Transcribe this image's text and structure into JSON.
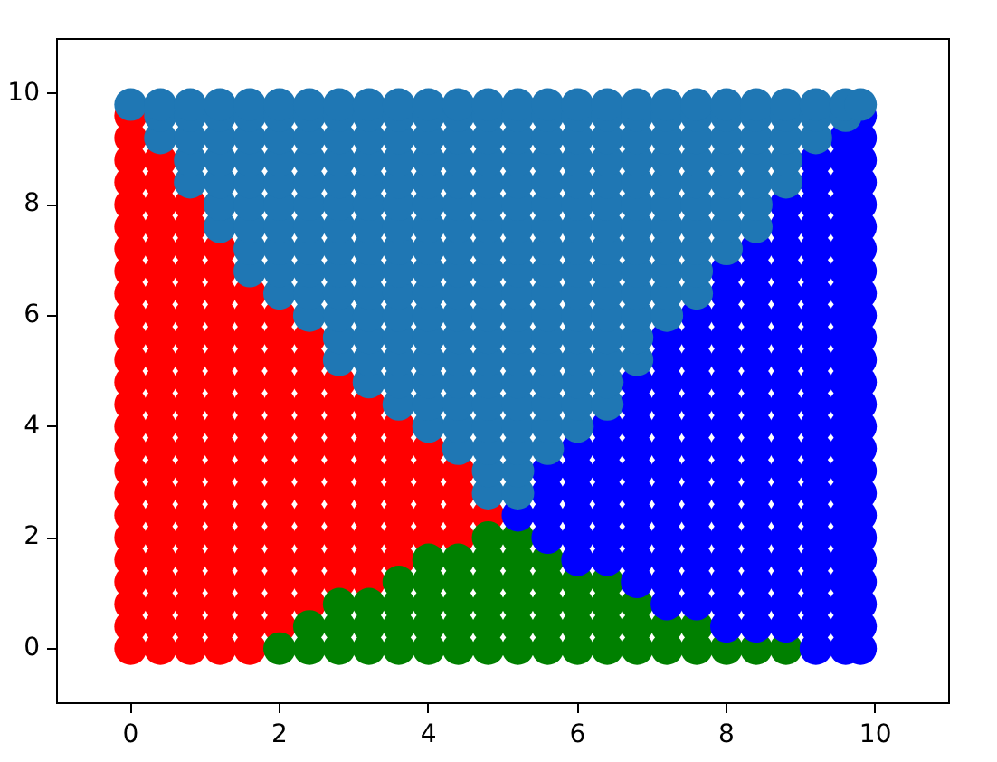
{
  "chart_data": {
    "type": "scatter",
    "xlim": [
      -1,
      11
    ],
    "ylim": [
      -1,
      11
    ],
    "xticks": [
      0,
      2,
      4,
      6,
      8,
      10
    ],
    "yticks": [
      0,
      2,
      4,
      6,
      8,
      10
    ],
    "marker": "circle",
    "series": [
      {
        "color": "#ff0000",
        "x": [
          0,
          0,
          0,
          0,
          0,
          0,
          0,
          0,
          0,
          0,
          0,
          0,
          0,
          0,
          0,
          0,
          0,
          0,
          0,
          0,
          0,
          0,
          0,
          0,
          0,
          0.4,
          0.4,
          0.4,
          0.4,
          0.4,
          0.4,
          0.4,
          0.4,
          0.4,
          0.4,
          0.4,
          0.4,
          0.4,
          0.4,
          0.4,
          0.4,
          0.4,
          0.4,
          0.4,
          0.4,
          0.4,
          0.4,
          0.4,
          0.8,
          0.8,
          0.8,
          0.8,
          0.8,
          0.8,
          0.8,
          0.8,
          0.8,
          0.8,
          0.8,
          0.8,
          0.8,
          0.8,
          0.8,
          0.8,
          0.8,
          0.8,
          0.8,
          0.8,
          0.8,
          1.2,
          1.2,
          1.2,
          1.2,
          1.2,
          1.2,
          1.2,
          1.2,
          1.2,
          1.2,
          1.2,
          1.2,
          1.2,
          1.2,
          1.2,
          1.2,
          1.2,
          1.2,
          1.2,
          1.6,
          1.6,
          1.6,
          1.6,
          1.6,
          1.6,
          1.6,
          1.6,
          1.6,
          1.6,
          1.6,
          1.6,
          1.6,
          1.6,
          1.6,
          1.6,
          1.6,
          2,
          2,
          2,
          2,
          2,
          2,
          2,
          2,
          2,
          2,
          2,
          2,
          2,
          2,
          2,
          2.4,
          2.4,
          2.4,
          2.4,
          2.4,
          2.4,
          2.4,
          2.4,
          2.4,
          2.4,
          2.4,
          2.4,
          2.4,
          2.8,
          2.8,
          2.8,
          2.8,
          2.8,
          2.8,
          2.8,
          2.8,
          2.8,
          2.8,
          3.2,
          3.2,
          3.2,
          3.2,
          3.2,
          3.2,
          3.2,
          3.2,
          3.2,
          3.6,
          3.6,
          3.6,
          3.6,
          3.6,
          3.6,
          3.6,
          4,
          4,
          4,
          4,
          4,
          4.4,
          4.4,
          4.4,
          4.4,
          4.8
        ],
        "values": [
          0,
          0.4,
          0.8,
          1.2,
          1.6,
          2,
          2.4,
          2.8,
          3.2,
          3.6,
          4,
          4.4,
          4.8,
          5.2,
          5.6,
          6,
          6.4,
          6.8,
          7.2,
          7.6,
          8,
          8.4,
          8.8,
          9.2,
          9.6,
          0,
          0.4,
          0.8,
          1.2,
          1.6,
          2,
          2.4,
          2.8,
          3.2,
          3.6,
          4,
          4.4,
          4.8,
          5.2,
          5.6,
          6,
          6.4,
          6.8,
          7.2,
          7.6,
          8,
          8.4,
          8.8,
          0,
          0.4,
          0.8,
          1.2,
          1.6,
          2,
          2.4,
          2.8,
          3.2,
          3.6,
          4,
          4.4,
          4.8,
          5.2,
          5.6,
          6,
          6.4,
          6.8,
          7.2,
          7.6,
          8,
          0,
          0.4,
          0.8,
          1.2,
          1.6,
          2,
          2.4,
          2.8,
          3.2,
          3.6,
          4,
          4.4,
          4.8,
          5.2,
          5.6,
          6,
          6.4,
          6.8,
          7.2,
          0,
          0.4,
          0.8,
          1.2,
          1.6,
          2,
          2.4,
          2.8,
          3.2,
          3.6,
          4,
          4.4,
          4.8,
          5.2,
          5.6,
          6,
          6.4,
          0.4,
          0.8,
          1.2,
          1.6,
          2,
          2.4,
          2.8,
          3.2,
          3.6,
          4,
          4.4,
          4.8,
          5.2,
          5.6,
          6,
          0.8,
          1.2,
          1.6,
          2,
          2.4,
          2.8,
          3.2,
          3.6,
          4,
          4.4,
          4.8,
          5.2,
          5.6,
          1.2,
          1.6,
          2,
          2.4,
          2.8,
          3.2,
          3.6,
          4,
          4.4,
          4.8,
          1.2,
          1.6,
          2,
          2.4,
          2.8,
          3.2,
          3.6,
          4,
          4.4,
          1.6,
          2,
          2.4,
          2.8,
          3.2,
          3.6,
          4,
          2,
          2.4,
          2.8,
          3.2,
          3.6,
          2,
          2.4,
          2.8,
          3.2,
          2.4
        ]
      },
      {
        "color": "#008000",
        "x": [
          2,
          2.4,
          2.4,
          2.8,
          2.8,
          2.8,
          3.2,
          3.2,
          3.2,
          3.6,
          3.6,
          3.6,
          3.6,
          4,
          4,
          4,
          4,
          4,
          4.4,
          4.4,
          4.4,
          4.4,
          4.4,
          4.8,
          4.8,
          4.8,
          4.8,
          4.8,
          4.8,
          5.2,
          5.2,
          5.2,
          5.2,
          5.2,
          5.2,
          5.6,
          5.6,
          5.6,
          5.6,
          5.6,
          6,
          6,
          6,
          6,
          6.4,
          6.4,
          6.4,
          6.4,
          6.8,
          6.8,
          6.8,
          7.2,
          7.2,
          7.6,
          7.6,
          8,
          8.4,
          8.8
        ],
        "values": [
          0,
          0,
          0.4,
          0,
          0.4,
          0.8,
          0,
          0.4,
          0.8,
          0,
          0.4,
          0.8,
          1.2,
          0,
          0.4,
          0.8,
          1.2,
          1.6,
          0,
          0.4,
          0.8,
          1.2,
          1.6,
          0,
          0.4,
          0.8,
          1.2,
          1.6,
          2,
          0,
          0.4,
          0.8,
          1.2,
          1.6,
          2,
          0,
          0.4,
          0.8,
          1.2,
          1.6,
          0,
          0.4,
          0.8,
          1.2,
          0,
          0.4,
          0.8,
          1.2,
          0,
          0.4,
          0.8,
          0,
          0.4,
          0,
          0.4,
          0,
          0,
          0
        ]
      },
      {
        "color": "#0000ff",
        "x": [
          5.2,
          5.6,
          5.6,
          5.6,
          5.6,
          6,
          6,
          6,
          6,
          6,
          6,
          6.4,
          6.4,
          6.4,
          6.4,
          6.4,
          6.4,
          6.4,
          6.8,
          6.8,
          6.8,
          6.8,
          6.8,
          6.8,
          6.8,
          6.8,
          6.8,
          6.8,
          7.2,
          7.2,
          7.2,
          7.2,
          7.2,
          7.2,
          7.2,
          7.2,
          7.2,
          7.2,
          7.2,
          7.2,
          7.2,
          7.6,
          7.6,
          7.6,
          7.6,
          7.6,
          7.6,
          7.6,
          7.6,
          7.6,
          7.6,
          7.6,
          7.6,
          7.6,
          7.6,
          8,
          8,
          8,
          8,
          8,
          8,
          8,
          8,
          8,
          8,
          8,
          8,
          8,
          8,
          8,
          8,
          8,
          8.4,
          8.4,
          8.4,
          8.4,
          8.4,
          8.4,
          8.4,
          8.4,
          8.4,
          8.4,
          8.4,
          8.4,
          8.4,
          8.4,
          8.4,
          8.4,
          8.4,
          8.4,
          8.8,
          8.8,
          8.8,
          8.8,
          8.8,
          8.8,
          8.8,
          8.8,
          8.8,
          8.8,
          8.8,
          8.8,
          8.8,
          8.8,
          8.8,
          8.8,
          8.8,
          8.8,
          8.8,
          8.8,
          9.2,
          9.2,
          9.2,
          9.2,
          9.2,
          9.2,
          9.2,
          9.2,
          9.2,
          9.2,
          9.2,
          9.2,
          9.2,
          9.2,
          9.2,
          9.2,
          9.2,
          9.2,
          9.2,
          9.2,
          9.2,
          9.2,
          9.2,
          9.6,
          9.6,
          9.6,
          9.6,
          9.6,
          9.6,
          9.6,
          9.6,
          9.6,
          9.6,
          9.6,
          9.6,
          9.6,
          9.6,
          9.6,
          9.6,
          9.6,
          9.6,
          9.6,
          9.6,
          9.6,
          9.6,
          9.6,
          9.6,
          9.8,
          9.8,
          9.8,
          9.8,
          9.8,
          9.8,
          9.8,
          9.8,
          9.8,
          9.8,
          9.8,
          9.8,
          9.8,
          9.8,
          9.8,
          9.8,
          9.8,
          9.8,
          9.8,
          9.8,
          9.8,
          9.8,
          9.8,
          9.8,
          9.8
        ],
        "values": [
          2.4,
          2,
          2.4,
          2.8,
          3.2,
          1.6,
          2,
          2.4,
          2.8,
          3.2,
          3.6,
          1.6,
          2,
          2.4,
          2.8,
          3.2,
          3.6,
          4,
          1.2,
          1.6,
          2,
          2.4,
          2.8,
          3.2,
          3.6,
          4,
          4.4,
          4.8,
          0.8,
          1.2,
          1.6,
          2,
          2.4,
          2.8,
          3.2,
          3.6,
          4,
          4.4,
          4.8,
          5.2,
          5.6,
          0.8,
          1.2,
          1.6,
          2,
          2.4,
          2.8,
          3.2,
          3.6,
          4,
          4.4,
          4.8,
          5.2,
          5.6,
          6,
          0.4,
          0.8,
          1.2,
          1.6,
          2,
          2.4,
          2.8,
          3.2,
          3.6,
          4,
          4.4,
          4.8,
          5.2,
          5.6,
          6,
          6.4,
          6.8,
          0.4,
          0.8,
          1.2,
          1.6,
          2,
          2.4,
          2.8,
          3.2,
          3.6,
          4,
          4.4,
          4.8,
          5.2,
          5.6,
          6,
          6.4,
          6.8,
          7.2,
          0.4,
          0.8,
          1.2,
          1.6,
          2,
          2.4,
          2.8,
          3.2,
          3.6,
          4,
          4.4,
          4.8,
          5.2,
          5.6,
          6,
          6.4,
          6.8,
          7.2,
          7.6,
          8,
          0,
          0.4,
          0.8,
          1.2,
          1.6,
          2,
          2.4,
          2.8,
          3.2,
          3.6,
          4,
          4.4,
          4.8,
          5.2,
          5.6,
          6,
          6.4,
          6.8,
          7.2,
          7.6,
          8,
          8.4,
          8.8,
          0,
          0.4,
          0.8,
          1.2,
          1.6,
          2,
          2.4,
          2.8,
          3.2,
          3.6,
          4,
          4.4,
          4.8,
          5.2,
          5.6,
          6,
          6.4,
          6.8,
          7.2,
          7.6,
          8,
          8.4,
          8.8,
          9.2,
          0,
          0.4,
          0.8,
          1.2,
          1.6,
          2,
          2.4,
          2.8,
          3.2,
          3.6,
          4,
          4.4,
          4.8,
          5.2,
          5.6,
          6,
          6.4,
          6.8,
          7.2,
          7.6,
          8,
          8.4,
          8.8,
          9.2,
          9.6
        ]
      },
      {
        "color": "#1f77b4",
        "x": [
          0,
          0.4,
          0.4,
          0.4,
          0.8,
          0.8,
          0.8,
          0.8,
          0.8,
          1.2,
          1.2,
          1.2,
          1.2,
          1.2,
          1.2,
          1.2,
          1.6,
          1.6,
          1.6,
          1.6,
          1.6,
          1.6,
          1.6,
          1.6,
          1.6,
          2,
          2,
          2,
          2,
          2,
          2,
          2,
          2,
          2,
          2,
          2.4,
          2.4,
          2.4,
          2.4,
          2.4,
          2.4,
          2.4,
          2.4,
          2.4,
          2.4,
          2.4,
          2.8,
          2.8,
          2.8,
          2.8,
          2.8,
          2.8,
          2.8,
          2.8,
          2.8,
          2.8,
          2.8,
          2.8,
          2.8,
          3.2,
          3.2,
          3.2,
          3.2,
          3.2,
          3.2,
          3.2,
          3.2,
          3.2,
          3.2,
          3.2,
          3.2,
          3.2,
          3.2,
          3.6,
          3.6,
          3.6,
          3.6,
          3.6,
          3.6,
          3.6,
          3.6,
          3.6,
          3.6,
          3.6,
          3.6,
          3.6,
          3.6,
          3.6,
          4,
          4,
          4,
          4,
          4,
          4,
          4,
          4,
          4,
          4,
          4,
          4,
          4,
          4,
          4,
          4,
          4.4,
          4.4,
          4.4,
          4.4,
          4.4,
          4.4,
          4.4,
          4.4,
          4.4,
          4.4,
          4.4,
          4.4,
          4.4,
          4.4,
          4.4,
          4.4,
          4.4,
          4.8,
          4.8,
          4.8,
          4.8,
          4.8,
          4.8,
          4.8,
          4.8,
          4.8,
          4.8,
          4.8,
          4.8,
          4.8,
          4.8,
          4.8,
          4.8,
          4.8,
          4.8,
          4.8,
          5.2,
          5.2,
          5.2,
          5.2,
          5.2,
          5.2,
          5.2,
          5.2,
          5.2,
          5.2,
          5.2,
          5.2,
          5.2,
          5.2,
          5.2,
          5.2,
          5.2,
          5.2,
          5.2,
          5.6,
          5.6,
          5.6,
          5.6,
          5.6,
          5.6,
          5.6,
          5.6,
          5.6,
          5.6,
          5.6,
          5.6,
          5.6,
          5.6,
          5.6,
          5.6,
          5.6,
          6,
          6,
          6,
          6,
          6,
          6,
          6,
          6,
          6,
          6,
          6,
          6,
          6,
          6,
          6,
          6,
          6.4,
          6.4,
          6.4,
          6.4,
          6.4,
          6.4,
          6.4,
          6.4,
          6.4,
          6.4,
          6.4,
          6.4,
          6.4,
          6.4,
          6.4,
          6.8,
          6.8,
          6.8,
          6.8,
          6.8,
          6.8,
          6.8,
          6.8,
          6.8,
          6.8,
          6.8,
          6.8,
          6.8,
          7.2,
          7.2,
          7.2,
          7.2,
          7.2,
          7.2,
          7.2,
          7.2,
          7.2,
          7.2,
          7.2,
          7.6,
          7.6,
          7.6,
          7.6,
          7.6,
          7.6,
          7.6,
          7.6,
          7.6,
          7.6,
          8,
          8,
          8,
          8,
          8,
          8,
          8,
          8,
          8.4,
          8.4,
          8.4,
          8.4,
          8.4,
          8.4,
          8.4,
          8.8,
          8.8,
          8.8,
          8.8,
          8.8,
          9.2,
          9.2,
          9.2,
          9.6,
          9.6,
          9.8
        ],
        "values": [
          9.8,
          9.2,
          9.6,
          9.8,
          8.4,
          8.8,
          9.2,
          9.6,
          9.8,
          7.6,
          8,
          8.4,
          8.8,
          9.2,
          9.6,
          9.8,
          6.8,
          7.2,
          7.6,
          8,
          8.4,
          8.8,
          9.2,
          9.6,
          9.8,
          6.4,
          6.8,
          7.2,
          7.6,
          8,
          8.4,
          8.8,
          9.2,
          9.6,
          9.8,
          6,
          6.4,
          6.8,
          7.2,
          7.6,
          8,
          8.4,
          8.8,
          9.2,
          9.6,
          9.8,
          5.2,
          5.6,
          6,
          6.4,
          6.8,
          7.2,
          7.6,
          8,
          8.4,
          8.8,
          9.2,
          9.6,
          9.8,
          4.8,
          5.2,
          5.6,
          6,
          6.4,
          6.8,
          7.2,
          7.6,
          8,
          8.4,
          8.8,
          9.2,
          9.6,
          9.8,
          4.4,
          4.8,
          5.2,
          5.6,
          6,
          6.4,
          6.8,
          7.2,
          7.6,
          8,
          8.4,
          8.8,
          9.2,
          9.6,
          9.8,
          4,
          4.4,
          4.8,
          5.2,
          5.6,
          6,
          6.4,
          6.8,
          7.2,
          7.6,
          8,
          8.4,
          8.8,
          9.2,
          9.6,
          9.8,
          3.6,
          4,
          4.4,
          4.8,
          5.2,
          5.6,
          6,
          6.4,
          6.8,
          7.2,
          7.6,
          8,
          8.4,
          8.8,
          9.2,
          9.6,
          9.8,
          2.8,
          3.2,
          3.6,
          4,
          4.4,
          4.8,
          5.2,
          5.6,
          6,
          6.4,
          6.8,
          7.2,
          7.6,
          8,
          8.4,
          8.8,
          9.2,
          9.6,
          9.8,
          2.8,
          3.2,
          3.6,
          4,
          4.4,
          4.8,
          5.2,
          5.6,
          6,
          6.4,
          6.8,
          7.2,
          7.6,
          8,
          8.4,
          8.8,
          9.2,
          9.6,
          9.8,
          3.6,
          4,
          4.4,
          4.8,
          5.2,
          5.6,
          6,
          6.4,
          6.8,
          7.2,
          7.6,
          8,
          8.4,
          8.8,
          9.2,
          9.6,
          9.8,
          4,
          4.4,
          4.8,
          5.2,
          5.6,
          6,
          6.4,
          6.8,
          7.2,
          7.6,
          8,
          8.4,
          8.8,
          9.2,
          9.6,
          9.8,
          4.4,
          4.8,
          5.2,
          5.6,
          6,
          6.4,
          6.8,
          7.2,
          7.6,
          8,
          8.4,
          8.8,
          9.2,
          9.6,
          9.8,
          5.2,
          5.6,
          6,
          6.4,
          6.8,
          7.2,
          7.6,
          8,
          8.4,
          8.8,
          9.2,
          9.6,
          9.8,
          6,
          6.4,
          6.8,
          7.2,
          7.6,
          8,
          8.4,
          8.8,
          9.2,
          9.6,
          9.8,
          6.4,
          6.8,
          7.2,
          7.6,
          8,
          8.4,
          8.8,
          9.2,
          9.6,
          9.8,
          7.2,
          7.6,
          8,
          8.4,
          8.8,
          9.2,
          9.6,
          9.8,
          7.6,
          8,
          8.4,
          8.8,
          9.2,
          9.6,
          9.8,
          8.4,
          8.8,
          9.2,
          9.6,
          9.8,
          9.2,
          9.6,
          9.8,
          9.6,
          9.8,
          9.8
        ]
      }
    ]
  }
}
